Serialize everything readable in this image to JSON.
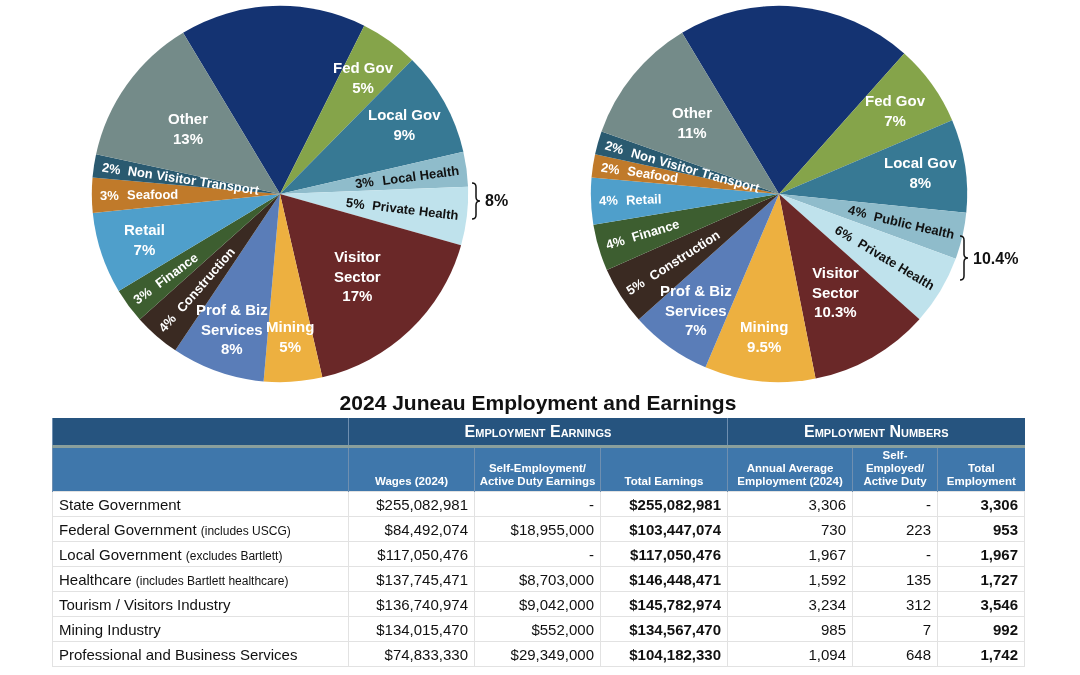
{
  "chart_data": [
    {
      "type": "pie",
      "categories": [
        null,
        "Fed Gov",
        "Local Gov",
        "Local Health",
        "Private Health",
        "Visitor Sector",
        "Mining",
        "Prof & Biz Services",
        "Construction",
        "Finance",
        "Retail",
        "Seafood",
        "Non Visitor Transport",
        "Other"
      ],
      "values": [
        16,
        5,
        9,
        3,
        5,
        17,
        5,
        8,
        4,
        3,
        7,
        3,
        2,
        13
      ],
      "value_labels": [
        null,
        "5%",
        "9%",
        "3%",
        "5%",
        "17%",
        "5%",
        "8%",
        "4%",
        "3%",
        "7%",
        "3%",
        "2%",
        "13%"
      ],
      "colors": [
        "#143372",
        "#85a44a",
        "#377994",
        "#8fbccb",
        "#bfe2ec",
        "#6a2828",
        "#edb040",
        "#5a7db8",
        "#3a2a22",
        "#3d5e30",
        "#4f9fcb",
        "#c07a2a",
        "#2a5a70",
        "#748b89"
      ],
      "annotations": [
        "8%"
      ]
    },
    {
      "type": "pie",
      "categories": [
        null,
        "Fed Gov",
        "Local Gov",
        "Public Health",
        "Private Health",
        "Visitor Sector",
        "Mining",
        "Prof & Biz Services",
        "Construction",
        "Finance",
        "Retail",
        "Seafood",
        "Non Visitor Transport",
        "Other"
      ],
      "values": [
        20.2,
        7,
        8,
        4,
        6,
        10.3,
        9.5,
        7,
        5,
        4,
        4,
        2,
        2,
        11
      ],
      "value_labels": [
        null,
        "7%",
        "8%",
        "4%",
        "6%",
        "10.3%",
        "9.5%",
        "7%",
        "5%",
        "4%",
        "4%",
        "2%",
        "2%",
        "11%"
      ],
      "colors": [
        "#143372",
        "#85a44a",
        "#377994",
        "#8fbccb",
        "#bfe2ec",
        "#6a2828",
        "#edb040",
        "#5a7db8",
        "#3a2a22",
        "#3d5e30",
        "#4f9fcb",
        "#c07a2a",
        "#2a5a70",
        "#748b89"
      ],
      "annotations": [
        "10.4%"
      ]
    },
    {
      "type": "other",
      "title": "2024 Juneau Employment and Earnings",
      "annotations": [
        "Employment Earnings",
        "Employment Numbers"
      ],
      "categories": [
        "Wages (2024)",
        "Self-Employment/ Active Duty Earnings",
        "Total Earnings",
        "Annual Average Employment (2024)",
        "Self-Employed/ Active Duty",
        "Total Employment"
      ],
      "y_categories": [
        "State Government",
        "Federal Government (includes USCG)",
        "Local Government (excludes Bartlett)",
        "Healthcare (includes Bartlett healthcare)",
        "Tourism / Visitors Industry",
        "Mining Industry",
        "Professional and Business Services"
      ],
      "cell_labels": [
        [
          "$255,082,981",
          "-",
          "$255,082,981",
          "3,306",
          "-",
          "3,306"
        ],
        [
          "$84,492,074",
          "$18,955,000",
          "$103,447,074",
          "730",
          "223",
          "953"
        ],
        [
          "$117,050,476",
          "-",
          "$117,050,476",
          "1,967",
          "-",
          "1,967"
        ],
        [
          "$137,745,471",
          "$8,703,000",
          "$146,448,471",
          "1,592",
          "135",
          "1,727"
        ],
        [
          "$136,740,974",
          "$9,042,000",
          "$145,782,974",
          "3,234",
          "312",
          "3,546"
        ],
        [
          "$134,015,470",
          "$552,000",
          "$134,567,470",
          "985",
          "7",
          "992"
        ],
        [
          "$74,833,330",
          "$29,349,000",
          "$104,182,330",
          "1,094",
          "648",
          "1,742"
        ]
      ]
    }
  ]
}
